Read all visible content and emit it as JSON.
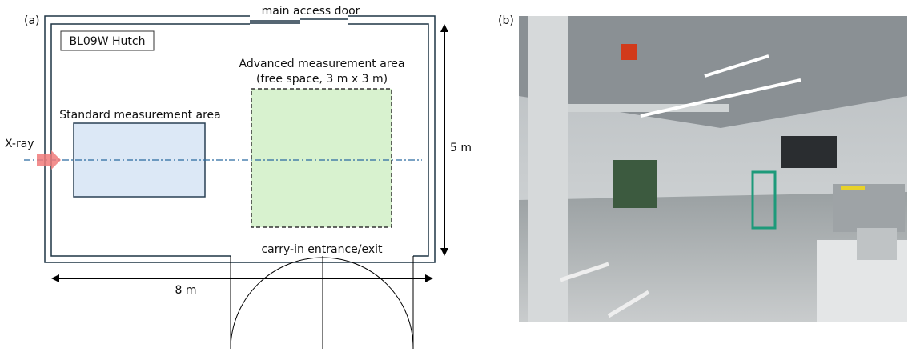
{
  "panel_a": {
    "label": "(a)",
    "door_top": "main access door",
    "hutch": "BL09W Hutch",
    "advanced_area": {
      "title": "Advanced measurement area",
      "subtitle": "(free space, 3 m x 3 m)"
    },
    "standard_area": "Standard measurement area",
    "beam": "X-ray",
    "height": "5 m",
    "width": "8 m",
    "entrance": "carry-in entrance/exit"
  },
  "panel_b": {
    "label": "(b)"
  }
}
